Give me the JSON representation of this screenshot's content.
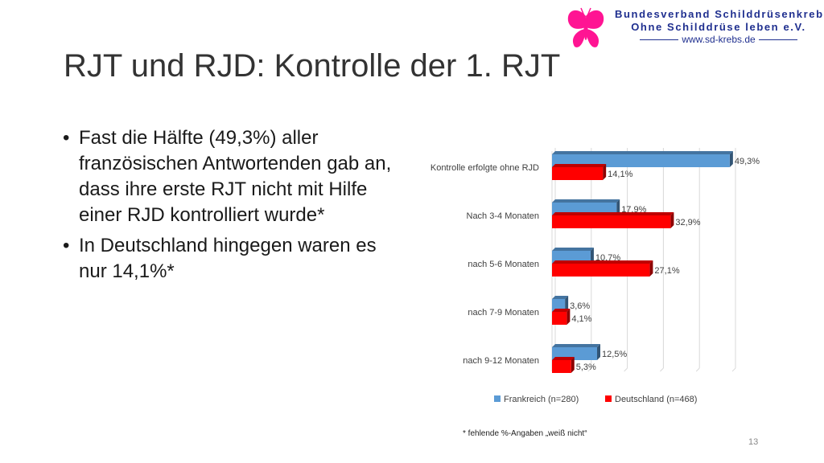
{
  "logo": {
    "line1": "Bundesverband Schilddrüsenkrebs",
    "line2": "Ohne Schilddrüse leben e.V.",
    "url": "www.sd-krebs.de",
    "color": "#1f2f8f",
    "mark_color": "#ff1493"
  },
  "slide": {
    "title": "RJT und RJD: Kontrolle der 1. RJT",
    "bullets": [
      "Fast die Hälfte (49,3%) aller französischen Antwortenden gab an, dass ihre erste RJT nicht mit Hilfe einer RJD kontrolliert wurde*",
      "In Deutschland hingegen waren es nur 14,1%*"
    ],
    "bullet_symbol": "•",
    "footnote": "* fehlende %-Angaben „weiß nicht“",
    "page_number": "13"
  },
  "chart_data": {
    "type": "bar",
    "orientation": "horizontal",
    "categories": [
      "Kontrolle erfolgte ohne RJD",
      "Nach 3-4 Monaten",
      "nach 5-6 Monaten",
      "nach 7-9 Monaten",
      "nach 9-12 Monaten"
    ],
    "series": [
      {
        "name": "Frankreich (n=280)",
        "color": "#5b9bd5",
        "values": [
          49.3,
          17.9,
          10.7,
          3.6,
          12.5
        ],
        "labels": [
          "49,3%",
          "17,9%",
          "10,7%",
          "3,6%",
          "12,5%"
        ]
      },
      {
        "name": "Deutschland (n=468)",
        "color": "#ff0000",
        "values": [
          14.1,
          32.9,
          27.1,
          4.1,
          5.3
        ],
        "labels": [
          "14,1%",
          "32,9%",
          "27,1%",
          "4,1%",
          "5,3%"
        ]
      }
    ],
    "xlim": [
      0,
      50
    ],
    "grid": true,
    "legend_position": "bottom",
    "style": "3d-bar"
  }
}
